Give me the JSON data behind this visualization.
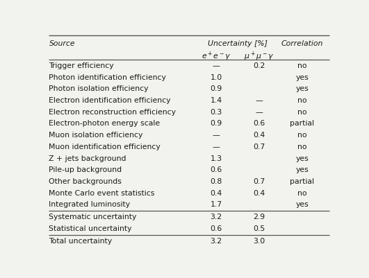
{
  "headers_row1": [
    "Source",
    "Uncertainty [%]",
    "Correlation"
  ],
  "headers_row2_col1": "$e^+e^-\\gamma$",
  "headers_row2_col2": "$\\mu^+\\mu^-\\gamma$",
  "rows": [
    [
      "Trigger efficiency",
      "—",
      "0.2",
      "no"
    ],
    [
      "Photon identification efficiency",
      "1.0",
      "",
      "yes"
    ],
    [
      "Photon isolation efficiency",
      "0.9",
      "",
      "yes"
    ],
    [
      "Electron identification efficiency",
      "1.4",
      "—",
      "no"
    ],
    [
      "Electron reconstruction efficiency",
      "0.3",
      "—",
      "no"
    ],
    [
      "Electron-photon energy scale",
      "0.9",
      "0.6",
      "partial"
    ],
    [
      "Muon isolation efficiency",
      "—",
      "0.4",
      "no"
    ],
    [
      "Muon identification efficiency",
      "—",
      "0.7",
      "no"
    ],
    [
      "Z + jets background",
      "1.3",
      "",
      "yes"
    ],
    [
      "Pile-up background",
      "0.6",
      "",
      "yes"
    ],
    [
      "Other backgrounds",
      "0.8",
      "0.7",
      "partial"
    ],
    [
      "Monte Carlo event statistics",
      "0.4",
      "0.4",
      "no"
    ],
    [
      "Integrated luminosity",
      "1.7",
      "",
      "yes"
    ]
  ],
  "summary_rows": [
    [
      "Systematic uncertainty",
      "3.2",
      "2.9",
      ""
    ],
    [
      "Statistical uncertainty",
      "0.6",
      "0.5",
      ""
    ]
  ],
  "total_row": [
    "Total uncertainty",
    "3.2",
    "3.0",
    ""
  ],
  "figsize": [
    5.31,
    4.02
  ],
  "dpi": 100,
  "font_size": 7.8,
  "bg_color": "#f2f2ee",
  "text_color": "#1a1a1a",
  "line_color": "#555555"
}
